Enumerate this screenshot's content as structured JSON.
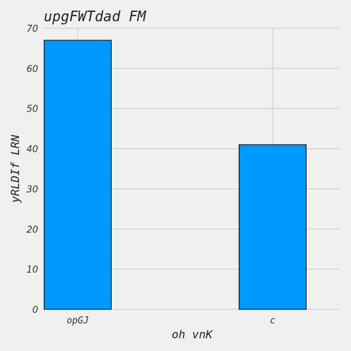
{
  "chart_data": {
    "type": "bar",
    "title": "upgFWTdad FM",
    "xlabel": "oh vnK",
    "ylabel": "yRLDIf LRN",
    "categories": [
      "opGJ",
      "c"
    ],
    "values": [
      67,
      41
    ],
    "ylim": [
      0,
      70
    ],
    "yticks": [
      0,
      10,
      20,
      30,
      40,
      50,
      60,
      70
    ],
    "grid": true,
    "bar_color": "#0099ff",
    "bar_edge_color": "#000000",
    "background_color": "#f0f0f0",
    "grid_color": "#cbcbcb"
  }
}
